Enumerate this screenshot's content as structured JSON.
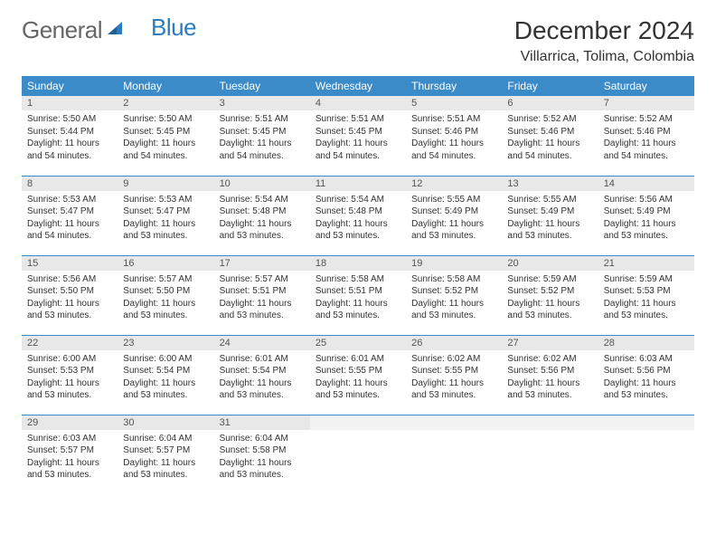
{
  "logo": {
    "text_general": "General",
    "text_blue": "Blue"
  },
  "title": "December 2024",
  "location": "Villarrica, Tolima, Colombia",
  "colors": {
    "header_bg": "#3b8bc9",
    "header_fg": "#ffffff",
    "daynum_bg": "#e8e8e8",
    "row_border": "#3b8bc9",
    "logo_blue": "#2b7bbf",
    "logo_gray": "#666666",
    "text": "#333333",
    "page_bg": "#ffffff"
  },
  "typography": {
    "title_fontsize": 28,
    "location_fontsize": 16,
    "dayheader_fontsize": 12,
    "daynum_fontsize": 11,
    "body_fontsize": 10
  },
  "day_headers": [
    "Sunday",
    "Monday",
    "Tuesday",
    "Wednesday",
    "Thursday",
    "Friday",
    "Saturday"
  ],
  "labels": {
    "sunrise": "Sunrise:",
    "sunset": "Sunset:",
    "daylight": "Daylight:"
  },
  "weeks": [
    [
      {
        "n": "1",
        "sr": "5:50 AM",
        "ss": "5:44 PM",
        "dl": "11 hours and 54 minutes."
      },
      {
        "n": "2",
        "sr": "5:50 AM",
        "ss": "5:45 PM",
        "dl": "11 hours and 54 minutes."
      },
      {
        "n": "3",
        "sr": "5:51 AM",
        "ss": "5:45 PM",
        "dl": "11 hours and 54 minutes."
      },
      {
        "n": "4",
        "sr": "5:51 AM",
        "ss": "5:45 PM",
        "dl": "11 hours and 54 minutes."
      },
      {
        "n": "5",
        "sr": "5:51 AM",
        "ss": "5:46 PM",
        "dl": "11 hours and 54 minutes."
      },
      {
        "n": "6",
        "sr": "5:52 AM",
        "ss": "5:46 PM",
        "dl": "11 hours and 54 minutes."
      },
      {
        "n": "7",
        "sr": "5:52 AM",
        "ss": "5:46 PM",
        "dl": "11 hours and 54 minutes."
      }
    ],
    [
      {
        "n": "8",
        "sr": "5:53 AM",
        "ss": "5:47 PM",
        "dl": "11 hours and 54 minutes."
      },
      {
        "n": "9",
        "sr": "5:53 AM",
        "ss": "5:47 PM",
        "dl": "11 hours and 53 minutes."
      },
      {
        "n": "10",
        "sr": "5:54 AM",
        "ss": "5:48 PM",
        "dl": "11 hours and 53 minutes."
      },
      {
        "n": "11",
        "sr": "5:54 AM",
        "ss": "5:48 PM",
        "dl": "11 hours and 53 minutes."
      },
      {
        "n": "12",
        "sr": "5:55 AM",
        "ss": "5:49 PM",
        "dl": "11 hours and 53 minutes."
      },
      {
        "n": "13",
        "sr": "5:55 AM",
        "ss": "5:49 PM",
        "dl": "11 hours and 53 minutes."
      },
      {
        "n": "14",
        "sr": "5:56 AM",
        "ss": "5:49 PM",
        "dl": "11 hours and 53 minutes."
      }
    ],
    [
      {
        "n": "15",
        "sr": "5:56 AM",
        "ss": "5:50 PM",
        "dl": "11 hours and 53 minutes."
      },
      {
        "n": "16",
        "sr": "5:57 AM",
        "ss": "5:50 PM",
        "dl": "11 hours and 53 minutes."
      },
      {
        "n": "17",
        "sr": "5:57 AM",
        "ss": "5:51 PM",
        "dl": "11 hours and 53 minutes."
      },
      {
        "n": "18",
        "sr": "5:58 AM",
        "ss": "5:51 PM",
        "dl": "11 hours and 53 minutes."
      },
      {
        "n": "19",
        "sr": "5:58 AM",
        "ss": "5:52 PM",
        "dl": "11 hours and 53 minutes."
      },
      {
        "n": "20",
        "sr": "5:59 AM",
        "ss": "5:52 PM",
        "dl": "11 hours and 53 minutes."
      },
      {
        "n": "21",
        "sr": "5:59 AM",
        "ss": "5:53 PM",
        "dl": "11 hours and 53 minutes."
      }
    ],
    [
      {
        "n": "22",
        "sr": "6:00 AM",
        "ss": "5:53 PM",
        "dl": "11 hours and 53 minutes."
      },
      {
        "n": "23",
        "sr": "6:00 AM",
        "ss": "5:54 PM",
        "dl": "11 hours and 53 minutes."
      },
      {
        "n": "24",
        "sr": "6:01 AM",
        "ss": "5:54 PM",
        "dl": "11 hours and 53 minutes."
      },
      {
        "n": "25",
        "sr": "6:01 AM",
        "ss": "5:55 PM",
        "dl": "11 hours and 53 minutes."
      },
      {
        "n": "26",
        "sr": "6:02 AM",
        "ss": "5:55 PM",
        "dl": "11 hours and 53 minutes."
      },
      {
        "n": "27",
        "sr": "6:02 AM",
        "ss": "5:56 PM",
        "dl": "11 hours and 53 minutes."
      },
      {
        "n": "28",
        "sr": "6:03 AM",
        "ss": "5:56 PM",
        "dl": "11 hours and 53 minutes."
      }
    ],
    [
      {
        "n": "29",
        "sr": "6:03 AM",
        "ss": "5:57 PM",
        "dl": "11 hours and 53 minutes."
      },
      {
        "n": "30",
        "sr": "6:04 AM",
        "ss": "5:57 PM",
        "dl": "11 hours and 53 minutes."
      },
      {
        "n": "31",
        "sr": "6:04 AM",
        "ss": "5:58 PM",
        "dl": "11 hours and 53 minutes."
      },
      null,
      null,
      null,
      null
    ]
  ]
}
